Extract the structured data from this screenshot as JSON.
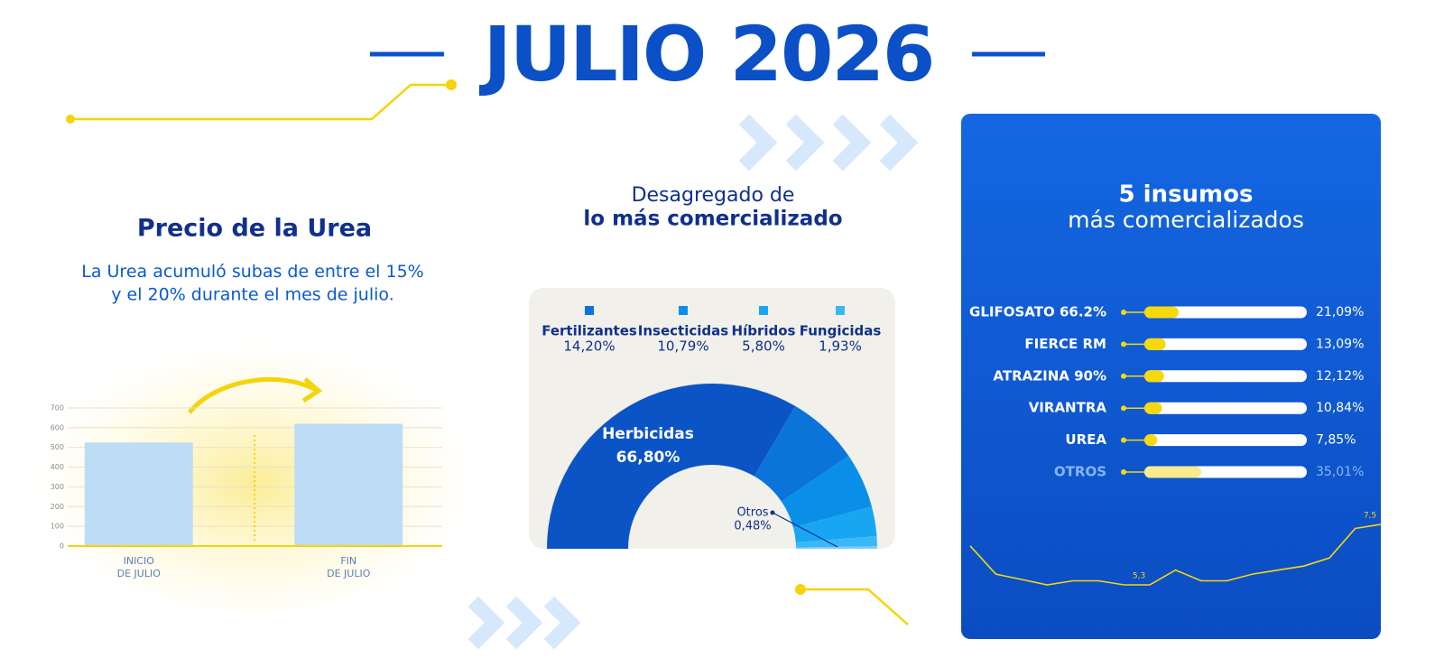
{
  "title": "JULIO 2026",
  "chart_data": [
    {
      "type": "bar",
      "title": "Precio de la Urea",
      "subtitle": "La Urea acumuló subas de entre el 15%\ny el 20% durante el mes de julio.",
      "categories": [
        "INICIO\nDE JULIO",
        "FIN\nDE JULIO"
      ],
      "values": [
        525,
        620
      ],
      "color": "#bddcf5",
      "ylim": [
        0,
        700
      ],
      "yticks": [
        0,
        100,
        200,
        300,
        400,
        500,
        600,
        700
      ],
      "grid": true
    },
    {
      "type": "donut",
      "title": "Desagregado de",
      "subtitle": "lo más comercializado",
      "categories": [
        "Herbicidas",
        "Fertilizantes",
        "Insecticidas",
        "Híbridos",
        "Fungicidas",
        "Otros"
      ],
      "values": [
        66.8,
        14.2,
        10.79,
        5.8,
        1.93,
        0.48
      ],
      "value_labels": [
        "66,80%",
        "14,20%",
        "10,79%",
        "5,80%",
        "1,93%",
        "0,48%"
      ],
      "colors": [
        "#0b54c6",
        "#0a74da",
        "#0a8fe8",
        "#18a6f2",
        "#3ab8f6",
        "#7ccdf9"
      ]
    },
    {
      "type": "progress",
      "title": "5 insumos",
      "subtitle": "más comercializados",
      "categories": [
        "GLIFOSATO 66.2%",
        "FIERCE RM",
        "ATRAZINA 90%",
        "VIRANTRA",
        "UREA",
        "OTROS"
      ],
      "values": [
        21.09,
        13.09,
        12.12,
        10.84,
        7.85,
        35.01
      ],
      "value_labels": [
        "21,09%",
        "13,09%",
        "12,12%",
        "10,84%",
        "7,85%",
        "35,01%"
      ],
      "colors": [
        "#f6d80c",
        "#f6d80c",
        "#f6d80c",
        "#f6d80c",
        "#f6d80c",
        "#f8ea8e"
      ],
      "label_colors": [
        "#ffffff",
        "#ffffff",
        "#ffffff",
        "#ffffff",
        "#ffffff",
        "#86b8f2"
      ],
      "xlim": [
        0,
        100
      ]
    },
    {
      "type": "line",
      "color": "#f6d80c",
      "values": [
        6.75,
        5.7,
        5.5,
        5.3,
        5.45,
        5.45,
        5.3,
        5.3,
        5.85,
        5.45,
        5.45,
        5.7,
        5.85,
        6.0,
        6.3,
        7.4,
        7.55
      ],
      "value_labels": [
        null,
        null,
        null,
        null,
        null,
        null,
        null,
        "5,3",
        null,
        null,
        null,
        null,
        null,
        null,
        null,
        null,
        "7,5"
      ]
    }
  ]
}
